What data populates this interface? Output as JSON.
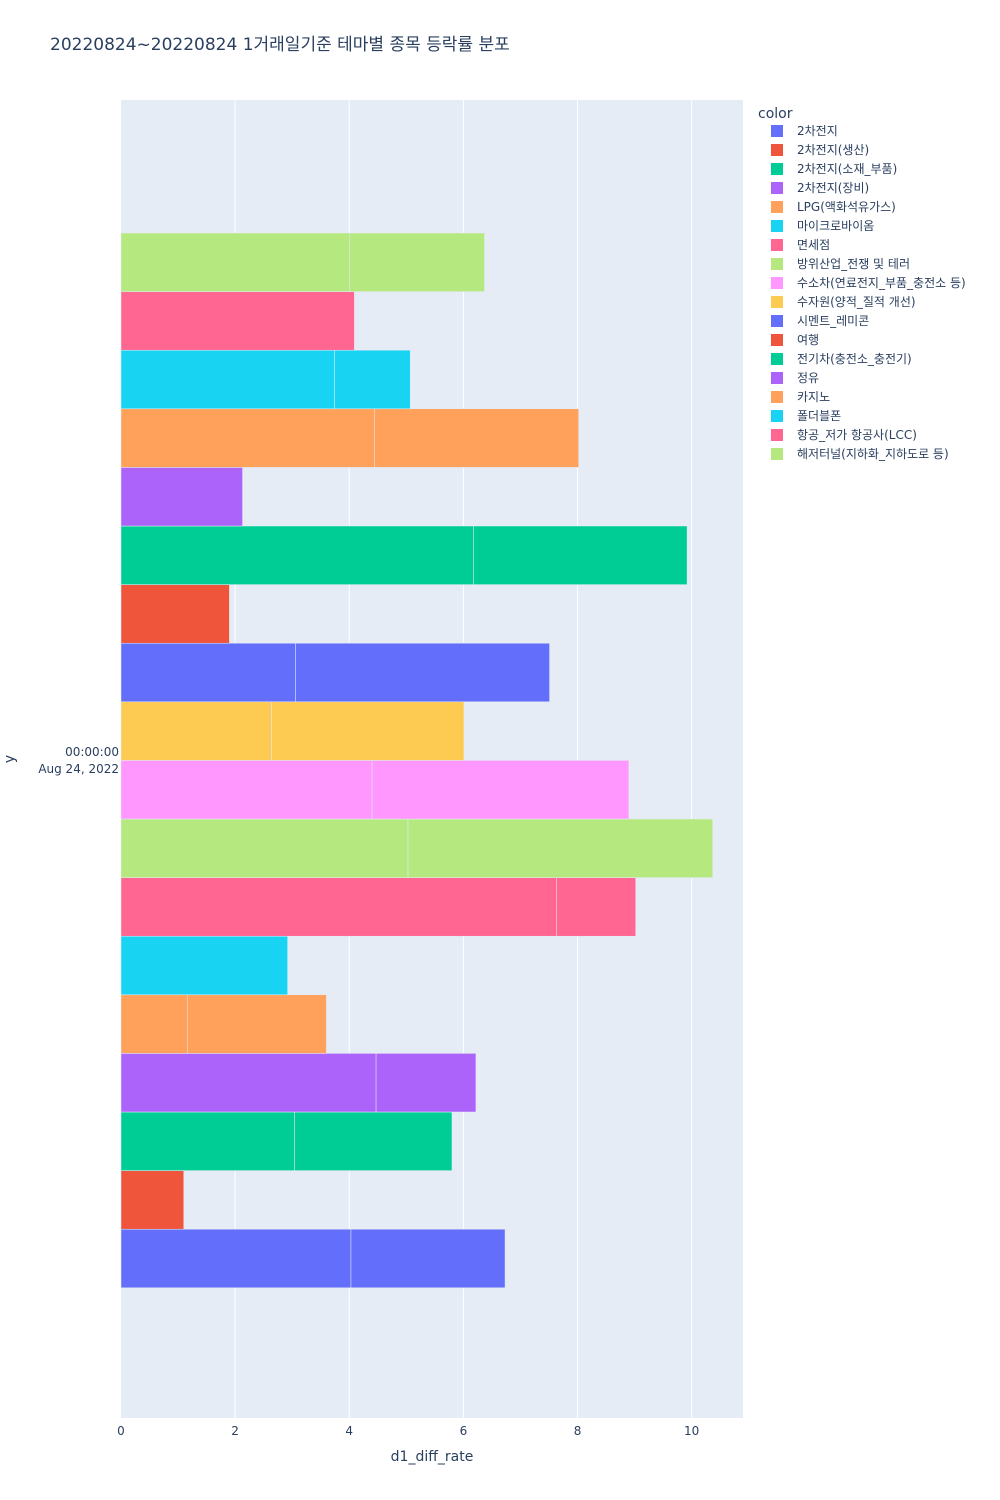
{
  "chart_data": {
    "type": "bar",
    "orientation": "horizontal",
    "title": "20220824~20220824 1거래일기준 테마별 종목 등락률 분포",
    "xlabel": "d1_diff_rate",
    "ylabel": "y",
    "y_tick_line1": "00:00:00",
    "y_tick_line2": "Aug 24, 2022",
    "xlim": [
      0,
      10.9
    ],
    "xticks": [
      0,
      2,
      4,
      6,
      8,
      10
    ],
    "legend_title": "color",
    "legend_position": "top-right",
    "series": [
      {
        "name": "2차전지",
        "color": "#636efa",
        "segments": [
          4.03,
          2.7
        ]
      },
      {
        "name": "2차전지(생산)",
        "color": "#EF553B",
        "segments": [
          1.1
        ]
      },
      {
        "name": "2차전지(소재_부품)",
        "color": "#00cc96",
        "segments": [
          3.04,
          2.76
        ]
      },
      {
        "name": "2차전지(장비)",
        "color": "#ab63fa",
        "segments": [
          4.47,
          1.75
        ]
      },
      {
        "name": "LPG(액화석유가스)",
        "color": "#FFA15A",
        "segments": [
          1.17,
          2.43
        ]
      },
      {
        "name": "마이크로바이옴",
        "color": "#19d3f3",
        "segments": [
          2.92
        ]
      },
      {
        "name": "면세점",
        "color": "#FF6692",
        "segments": [
          7.63,
          1.39
        ]
      },
      {
        "name": "방위산업_전쟁 및 테러",
        "color": "#B6E880",
        "segments": [
          5.03,
          5.34
        ]
      },
      {
        "name": "수소차(연료전지_부품_충전소 등)",
        "color": "#FF97FF",
        "segments": [
          4.4,
          4.5
        ]
      },
      {
        "name": "수자원(양적_질적 개선)",
        "color": "#FECB52",
        "segments": [
          2.64,
          3.37
        ]
      },
      {
        "name": "시멘트_레미콘",
        "color": "#636efa",
        "segments": [
          3.06,
          4.45
        ]
      },
      {
        "name": "여행",
        "color": "#EF553B",
        "segments": [
          1.9
        ]
      },
      {
        "name": "전기차(충전소_충전기)",
        "color": "#00cc96",
        "segments": [
          6.18,
          3.74
        ]
      },
      {
        "name": "정유",
        "color": "#ab63fa",
        "segments": [
          2.13
        ]
      },
      {
        "name": "카지노",
        "color": "#FFA15A",
        "segments": [
          4.44,
          3.58
        ]
      },
      {
        "name": "폴더블폰",
        "color": "#19d3f3",
        "segments": [
          3.74,
          1.33
        ]
      },
      {
        "name": "항공_저가 항공사(LCC)",
        "color": "#FF6692",
        "segments": [
          4.09
        ]
      },
      {
        "name": "해저터널(지하화_지하도로 등)",
        "color": "#B6E880",
        "segments": [
          4.01,
          2.36
        ]
      }
    ]
  }
}
